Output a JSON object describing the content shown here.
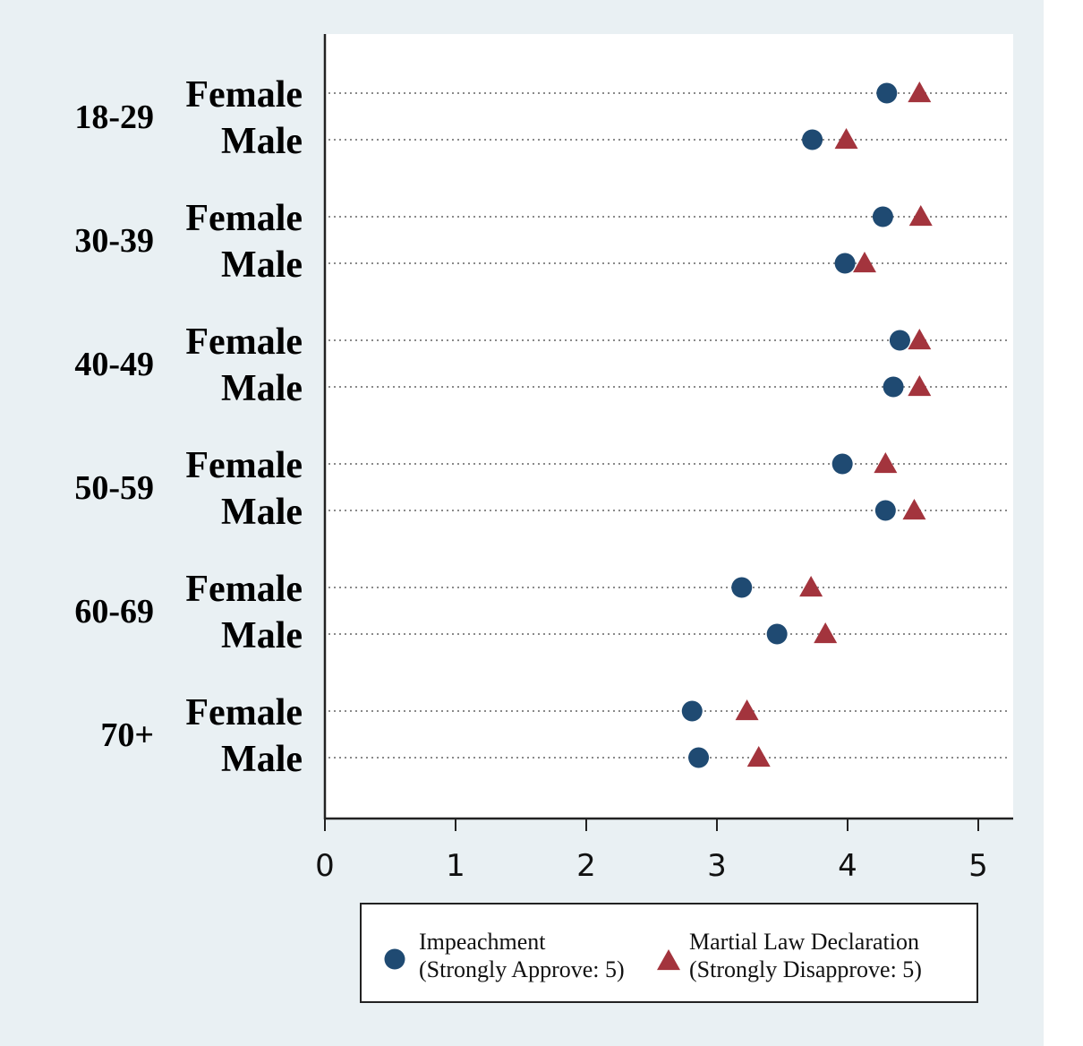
{
  "chart_data": {
    "type": "scatter",
    "title": "",
    "xlabel": "",
    "ylabel": "",
    "xlim": [
      0,
      5.3
    ],
    "xticks": [
      0,
      1,
      2,
      3,
      4,
      5
    ],
    "grid": "dotted horizontal guide lines per row",
    "legend_position": "bottom-center",
    "groups": [
      {
        "label": "18-29",
        "rows": [
          "Female",
          "Male"
        ]
      },
      {
        "label": "30-39",
        "rows": [
          "Female",
          "Male"
        ]
      },
      {
        "label": "40-49",
        "rows": [
          "Female",
          "Male"
        ]
      },
      {
        "label": "50-59",
        "rows": [
          "Female",
          "Male"
        ]
      },
      {
        "label": "60-69",
        "rows": [
          "Female",
          "Male"
        ]
      },
      {
        "label": "70+",
        "rows": [
          "Female",
          "Male"
        ]
      }
    ],
    "series": [
      {
        "name": "Impeachment (Strongly Approve: 5)",
        "legend_lines": [
          "Impeachment",
          "(Strongly Approve: 5)"
        ],
        "marker": "circle",
        "color": "#1f4a72",
        "values": [
          4.3,
          3.73,
          4.27,
          3.98,
          4.4,
          4.35,
          3.96,
          4.29,
          3.19,
          3.46,
          2.81,
          2.86
        ]
      },
      {
        "name": "Martial Law Declaration (Strongly Disapprove: 5)",
        "legend_lines": [
          "Martial Law Declaration",
          "(Strongly Disapprove: 5)"
        ],
        "marker": "triangle",
        "color": "#a3343d",
        "values": [
          4.55,
          3.99,
          4.56,
          4.13,
          4.55,
          4.55,
          4.29,
          4.51,
          3.72,
          3.83,
          3.23,
          3.32
        ]
      }
    ]
  }
}
